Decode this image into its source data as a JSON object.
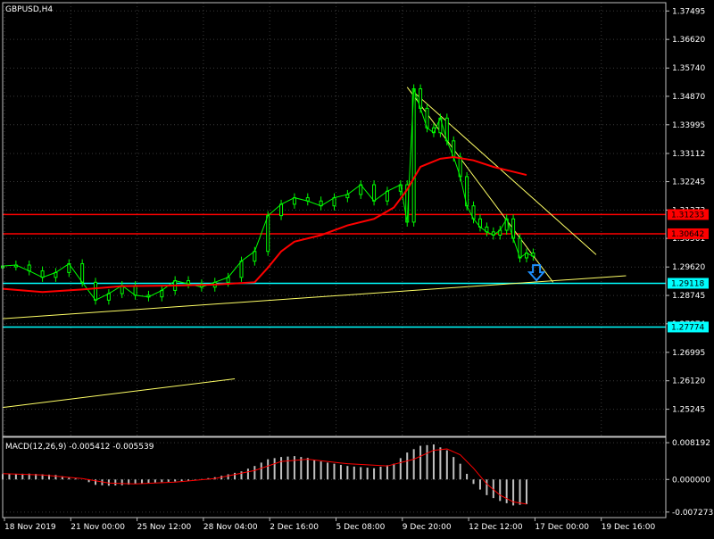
{
  "symbol_title": "GBPUSD,H4",
  "colors": {
    "background": "#000000",
    "frame": "#c0c0c0",
    "text": "#ffffff",
    "grid": "#3a3a3a",
    "candle": "#00ff00",
    "ma": "#ff0000",
    "resistance": "#ff0000",
    "support": "#00ffff",
    "trendline": "#ffff66",
    "macd_hist": "#c0c0c0",
    "macd_signal": "#ff0000",
    "arrow": "#1e90ff"
  },
  "chart_data": [
    {
      "type": "line",
      "panel": "main",
      "title": "GBPUSD,H4",
      "yaxis_ticks": [
        "1.37495",
        "1.36620",
        "1.35740",
        "1.34870",
        "1.33995",
        "1.33112",
        "1.32245",
        "1.31373",
        "1.30501",
        "1.29620",
        "1.28745",
        "1.27874",
        "1.26995",
        "1.26120",
        "1.25245"
      ],
      "ylim": [
        1.2441,
        1.3775
      ],
      "xaxis_ticks": [
        "18 Nov 2019",
        "21 Nov 00:00",
        "25 Nov 12:00",
        "28 Nov 04:00",
        "2 Dec 16:00",
        "5 Dec 08:00",
        "9 Dec 20:00",
        "12 Dec 12:00",
        "17 Dec 00:00",
        "19 Dec 16:00"
      ],
      "x_range": [
        0,
        100
      ],
      "series": [
        {
          "kind": "price",
          "points": [
            [
              0,
              1.2965
            ],
            [
              2,
              1.2968
            ],
            [
              4,
              1.295
            ],
            [
              6,
              1.293
            ],
            [
              8,
              1.2945
            ],
            [
              10,
              1.2972
            ],
            [
              12,
              1.2915
            ],
            [
              14,
              1.286
            ],
            [
              16,
              1.288
            ],
            [
              18,
              1.2905
            ],
            [
              20,
              1.2875
            ],
            [
              22,
              1.287
            ],
            [
              24,
              1.289
            ],
            [
              26,
              1.292
            ],
            [
              28,
              1.291
            ],
            [
              30,
              1.29
            ],
            [
              32,
              1.2915
            ],
            [
              34,
              1.293
            ],
            [
              36,
              1.298
            ],
            [
              38,
              1.301
            ],
            [
              40,
              1.312
            ],
            [
              42,
              1.3155
            ],
            [
              44,
              1.3175
            ],
            [
              46,
              1.3165
            ],
            [
              48,
              1.315
            ],
            [
              50,
              1.3175
            ],
            [
              52,
              1.3185
            ],
            [
              54,
              1.3215
            ],
            [
              56,
              1.3165
            ],
            [
              58,
              1.3195
            ],
            [
              60,
              1.3215
            ],
            [
              61,
              1.31
            ],
            [
              62,
              1.351
            ],
            [
              63,
              1.345
            ],
            [
              64,
              1.339
            ],
            [
              65,
              1.3375
            ],
            [
              66,
              1.342
            ],
            [
              67,
              1.335
            ],
            [
              68,
              1.33
            ],
            [
              69,
              1.324
            ],
            [
              70,
              1.315
            ],
            [
              71,
              1.311
            ],
            [
              72,
              1.3085
            ],
            [
              73,
              1.307
            ],
            [
              74,
              1.306
            ],
            [
              75,
              1.3075
            ],
            [
              76,
              1.311
            ],
            [
              77,
              1.305
            ],
            [
              78,
              1.299
            ],
            [
              79,
              1.3005
            ],
            [
              80,
              1.2995
            ]
          ]
        },
        {
          "kind": "moving_average",
          "points": [
            [
              0,
              1.2895
            ],
            [
              6,
              1.2885
            ],
            [
              12,
              1.2893
            ],
            [
              18,
              1.2903
            ],
            [
              26,
              1.2905
            ],
            [
              32,
              1.2908
            ],
            [
              38,
              1.2915
            ],
            [
              40,
              1.296
            ],
            [
              42,
              1.301
            ],
            [
              44,
              1.304
            ],
            [
              48,
              1.306
            ],
            [
              52,
              1.309
            ],
            [
              56,
              1.311
            ],
            [
              59,
              1.3145
            ],
            [
              61,
              1.32
            ],
            [
              63,
              1.327
            ],
            [
              66,
              1.3295
            ],
            [
              68,
              1.33
            ],
            [
              71,
              1.329
            ],
            [
              74,
              1.327
            ],
            [
              77,
              1.3255
            ],
            [
              79,
              1.3245
            ]
          ]
        },
        {
          "kind": "trendline",
          "points": [
            [
              0,
              1.2803
            ],
            [
              94,
              1.2935
            ]
          ]
        },
        {
          "kind": "trendline",
          "points": [
            [
              61,
              1.3515
            ],
            [
              83,
              1.2915
            ]
          ]
        },
        {
          "kind": "trendline",
          "points": [
            [
              62,
              1.35
            ],
            [
              89.5,
              1.3
            ]
          ]
        },
        {
          "kind": "trendline",
          "points": [
            [
              0,
              1.253
            ],
            [
              35,
              1.2618
            ]
          ]
        }
      ],
      "horizontal_levels": [
        {
          "label": "1.31233",
          "value": 1.31233,
          "role": "resistance"
        },
        {
          "label": "1.30642",
          "value": 1.30642,
          "role": "resistance"
        },
        {
          "label": "1.29118",
          "value": 1.29118,
          "role": "support"
        },
        {
          "label": "1.27774",
          "value": 1.27774,
          "role": "support"
        }
      ],
      "annotations": [
        {
          "kind": "down_arrow",
          "x": 80.5,
          "y": 1.2995
        }
      ]
    },
    {
      "type": "bar",
      "panel": "indicator",
      "title": "MACD(12,26,9) -0.005412 -0.005539",
      "yaxis_ticks": [
        "0.008192",
        "0.000000",
        "-0.007273"
      ],
      "ylim": [
        -0.0085,
        0.0094
      ],
      "x_range": [
        0,
        100
      ],
      "series": [
        {
          "name": "MACD",
          "kind": "histogram",
          "points": [
            [
              0,
              0.0012
            ],
            [
              4,
              0.0013
            ],
            [
              8,
              0.001
            ],
            [
              10,
              0.0004
            ],
            [
              12,
              0.0
            ],
            [
              14,
              -0.0012
            ],
            [
              16,
              -0.0014
            ],
            [
              18,
              -0.0013
            ],
            [
              20,
              -0.001
            ],
            [
              24,
              -0.0006
            ],
            [
              28,
              -0.0003
            ],
            [
              32,
              0.0005
            ],
            [
              36,
              0.0018
            ],
            [
              38,
              0.003
            ],
            [
              40,
              0.0045
            ],
            [
              42,
              0.005
            ],
            [
              44,
              0.0052
            ],
            [
              46,
              0.0048
            ],
            [
              48,
              0.004
            ],
            [
              52,
              0.003
            ],
            [
              56,
              0.0025
            ],
            [
              59,
              0.0035
            ],
            [
              61,
              0.006
            ],
            [
              63,
              0.0075
            ],
            [
              65,
              0.0078
            ],
            [
              67,
              0.0065
            ],
            [
              69,
              0.0035
            ],
            [
              71,
              -0.001
            ],
            [
              73,
              -0.0035
            ],
            [
              75,
              -0.0048
            ],
            [
              77,
              -0.0058
            ],
            [
              79,
              -0.0055
            ]
          ]
        },
        {
          "name": "Signal",
          "kind": "line",
          "points": [
            [
              0,
              0.0013
            ],
            [
              6,
              0.001
            ],
            [
              12,
              0.0002
            ],
            [
              16,
              -0.0008
            ],
            [
              20,
              -0.001
            ],
            [
              26,
              -0.0006
            ],
            [
              32,
              0.0002
            ],
            [
              38,
              0.002
            ],
            [
              42,
              0.004
            ],
            [
              46,
              0.0045
            ],
            [
              52,
              0.0035
            ],
            [
              58,
              0.003
            ],
            [
              62,
              0.0045
            ],
            [
              65,
              0.0065
            ],
            [
              67,
              0.0068
            ],
            [
              69,
              0.0055
            ],
            [
              71,
              0.0025
            ],
            [
              73,
              -0.001
            ],
            [
              75,
              -0.0035
            ],
            [
              77,
              -0.005
            ],
            [
              79,
              -0.0055
            ]
          ]
        }
      ]
    }
  ]
}
